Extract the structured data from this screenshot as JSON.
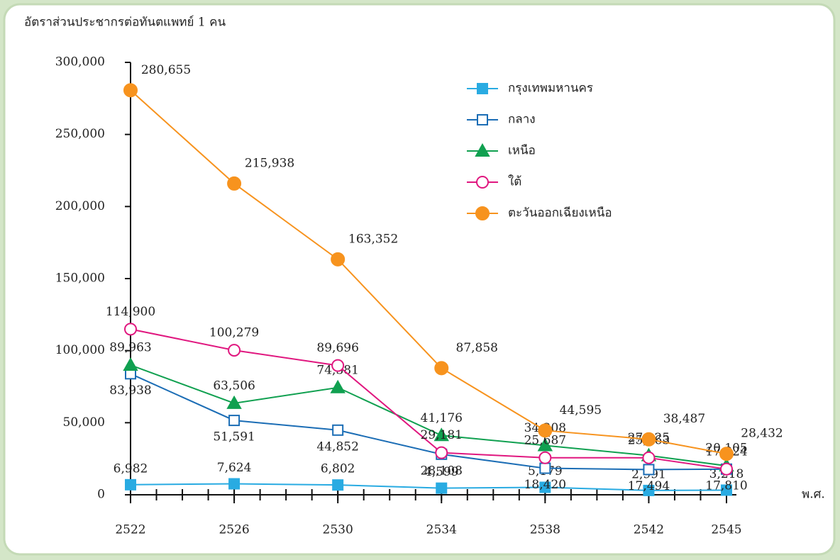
{
  "chart_data": {
    "type": "line",
    "title": "อัตราส่วนประชากรต่อทันตแพทย์ 1 คน",
    "xlabel": "พ.ศ.",
    "x": [
      2522,
      2526,
      2530,
      2534,
      2538,
      2542,
      2545
    ],
    "xlim": [
      2522,
      2545
    ],
    "xticks": [
      2522,
      2526,
      2530,
      2534,
      2538,
      2542,
      2545
    ],
    "ylim": [
      0,
      300000
    ],
    "yticks": [
      0,
      {
        "value": 50000,
        "label": "50,000"
      },
      {
        "value": 100000,
        "label": "100,000"
      },
      {
        "value": 150000,
        "label": "150,000"
      },
      {
        "value": 200000,
        "label": "200,000"
      },
      {
        "value": 250000,
        "label": "250,000"
      },
      {
        "value": 300000,
        "label": "300,000"
      }
    ],
    "legend": "upper right",
    "series": [
      {
        "name": "กรุงเทพมหานคร",
        "color": "#29abe2",
        "marker": "square",
        "filled": true,
        "values": [
          6982,
          7624,
          6802,
          4599,
          5179,
          2991,
          3218
        ],
        "value_labels": [
          "6,982",
          "7,624",
          "6,802",
          "4,599",
          "5,179",
          "2,991",
          "3,218"
        ]
      },
      {
        "name": "กลาง",
        "color": "#1b6db5",
        "marker": "square",
        "filled": false,
        "values": [
          83938,
          51591,
          44852,
          28108,
          18420,
          17494,
          17810
        ],
        "value_labels": [
          "83,938",
          "51,591",
          "44,852",
          "28,108",
          "18,420",
          "17,494",
          "17,810"
        ]
      },
      {
        "name": "เหนือ",
        "color": "#10a050",
        "marker": "triangle",
        "filled": true,
        "values": [
          89963,
          63506,
          74381,
          41176,
          34208,
          27225,
          20105
        ],
        "value_labels": [
          "89,963",
          "63,506",
          "74,381",
          "41,176",
          "34,208",
          "27,225",
          "20,105"
        ]
      },
      {
        "name": "ใต้",
        "color": "#e0177f",
        "marker": "circle",
        "filled": false,
        "values": [
          114900,
          100279,
          89696,
          29181,
          25687,
          25663,
          17824
        ],
        "value_labels": [
          "114,900",
          "100,279",
          "89,696",
          "29,181",
          "25,687",
          "25,663",
          "17,824"
        ]
      },
      {
        "name": "ตะวันออกเฉียงเหนือ",
        "color": "#f7931e",
        "marker": "circle",
        "filled": true,
        "values": [
          280655,
          215938,
          163352,
          87858,
          44595,
          38487,
          28432
        ],
        "value_labels": [
          "280,655",
          "215,938",
          "163,352",
          "87,858",
          "44,595",
          "38,487",
          "28,432"
        ]
      }
    ]
  }
}
